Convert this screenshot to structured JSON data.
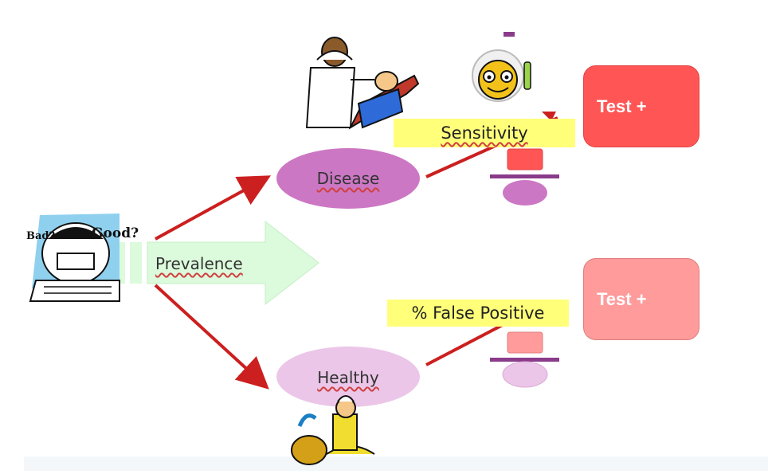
{
  "prevalence": {
    "label": "Prevalence"
  },
  "disease": {
    "label": "Disease"
  },
  "healthy": {
    "label": "Healthy"
  },
  "sensitivity": {
    "label": "Sensitivity"
  },
  "false_positive": {
    "label": "% False Positive"
  },
  "test_top": {
    "label": "Test +"
  },
  "test_bottom": {
    "label": "Test +"
  },
  "clipart": {
    "thinker_bad": "Bad?",
    "thinker_good": "Good?"
  },
  "colors": {
    "arrow_red": "#cc1f1f",
    "disease_fill": "#cc77c4",
    "healthy_fill": "#ebc6e8",
    "prevalence_fill": "#dcfadc",
    "label_yellow": "#ffff7a",
    "test_top_fill": "#ff5555",
    "test_bottom_fill": "#ff9b9b",
    "fraction_bar": "#8a3b8a"
  }
}
